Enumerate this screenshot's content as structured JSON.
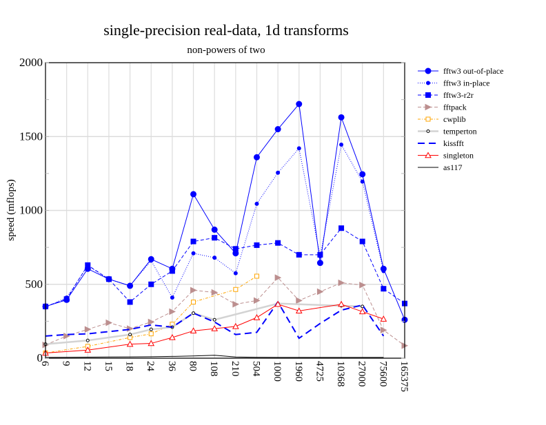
{
  "chart_data": {
    "type": "line",
    "title": "single-precision real-data, 1d transforms",
    "subtitle": "non-powers of two",
    "xlabel": "",
    "ylabel": "speed (mflops)",
    "ylim": [
      0,
      2000
    ],
    "yticks": [
      "0",
      "500",
      "1000",
      "1500",
      "2000"
    ],
    "grid": true,
    "legend_position": "right",
    "categories": [
      "6",
      "9",
      "12",
      "15",
      "18",
      "24",
      "36",
      "80",
      "108",
      "210",
      "504",
      "1000",
      "1960",
      "4725",
      "10368",
      "27000",
      "75600",
      "165375"
    ],
    "series": [
      {
        "name": "fftw3 out-of-place",
        "color": "#0000ff",
        "dash": "",
        "width": 1,
        "marker": "circle",
        "msize": 4,
        "fill": true,
        "values": [
          350,
          395,
          605,
          535,
          490,
          670,
          605,
          1110,
          870,
          710,
          1360,
          1550,
          1720,
          645,
          1630,
          1245,
          605,
          260
        ]
      },
      {
        "name": "fftw3 in-place",
        "color": "#0000ff",
        "dash": "1,2",
        "width": 1,
        "marker": "circle",
        "msize": 2.5,
        "fill": true,
        "values": [
          345,
          410,
          625,
          535,
          490,
          660,
          410,
          710,
          680,
          575,
          1045,
          1255,
          1420,
          690,
          1445,
          1195,
          590,
          null
        ]
      },
      {
        "name": "fftw3-r2r",
        "color": "#0000ff",
        "dash": "5,3",
        "width": 1,
        "marker": "square",
        "msize": 3.5,
        "fill": true,
        "values": [
          350,
          400,
          630,
          535,
          380,
          500,
          590,
          790,
          815,
          740,
          765,
          780,
          700,
          700,
          880,
          790,
          470,
          370
        ]
      },
      {
        "name": "fftpack",
        "color": "#bc8f8f",
        "dash": "5,3",
        "width": 1,
        "marker": "triangle-right",
        "msize": 4,
        "fill": true,
        "values": [
          90,
          150,
          195,
          240,
          200,
          245,
          315,
          460,
          445,
          365,
          390,
          545,
          390,
          450,
          510,
          495,
          190,
          85
        ]
      },
      {
        "name": "cwplib",
        "color": "#ffa500",
        "dash": "4,2,1,2",
        "width": 1,
        "marker": "square",
        "msize": 3,
        "fill": false,
        "values": [
          35,
          null,
          80,
          null,
          140,
          165,
          230,
          380,
          null,
          465,
          555,
          null,
          null,
          null,
          null,
          null,
          null,
          null
        ]
      },
      {
        "name": "temperton",
        "color": "#d3d3d3",
        "dash": "",
        "width": 2.5,
        "marker": "circle",
        "msize": 2,
        "fill": false,
        "mcolor": "#000000",
        "values": [
          95,
          null,
          120,
          null,
          160,
          195,
          210,
          305,
          260,
          null,
          null,
          370,
          null,
          null,
          355,
          350,
          null,
          null
        ]
      },
      {
        "name": "kissfft",
        "color": "#0000ff",
        "dash": "10,6",
        "width": 2,
        "marker": "none",
        "msize": 0,
        "fill": false,
        "values": [
          150,
          160,
          165,
          180,
          195,
          225,
          210,
          305,
          245,
          160,
          175,
          380,
          135,
          235,
          325,
          360,
          150,
          null
        ]
      },
      {
        "name": "singleton",
        "color": "#ff0000",
        "dash": "",
        "width": 1,
        "marker": "triangle",
        "msize": 4,
        "fill": false,
        "values": [
          35,
          null,
          55,
          null,
          95,
          100,
          140,
          185,
          200,
          215,
          275,
          365,
          320,
          null,
          365,
          315,
          265,
          null
        ]
      },
      {
        "name": "as117",
        "color": "#000000",
        "dash": "",
        "width": 1,
        "marker": "none",
        "msize": 0,
        "fill": false,
        "values": [
          5,
          6,
          7,
          8,
          9,
          10,
          12,
          15,
          20,
          8,
          6,
          5,
          5,
          5,
          5,
          5,
          5,
          null
        ]
      }
    ]
  }
}
